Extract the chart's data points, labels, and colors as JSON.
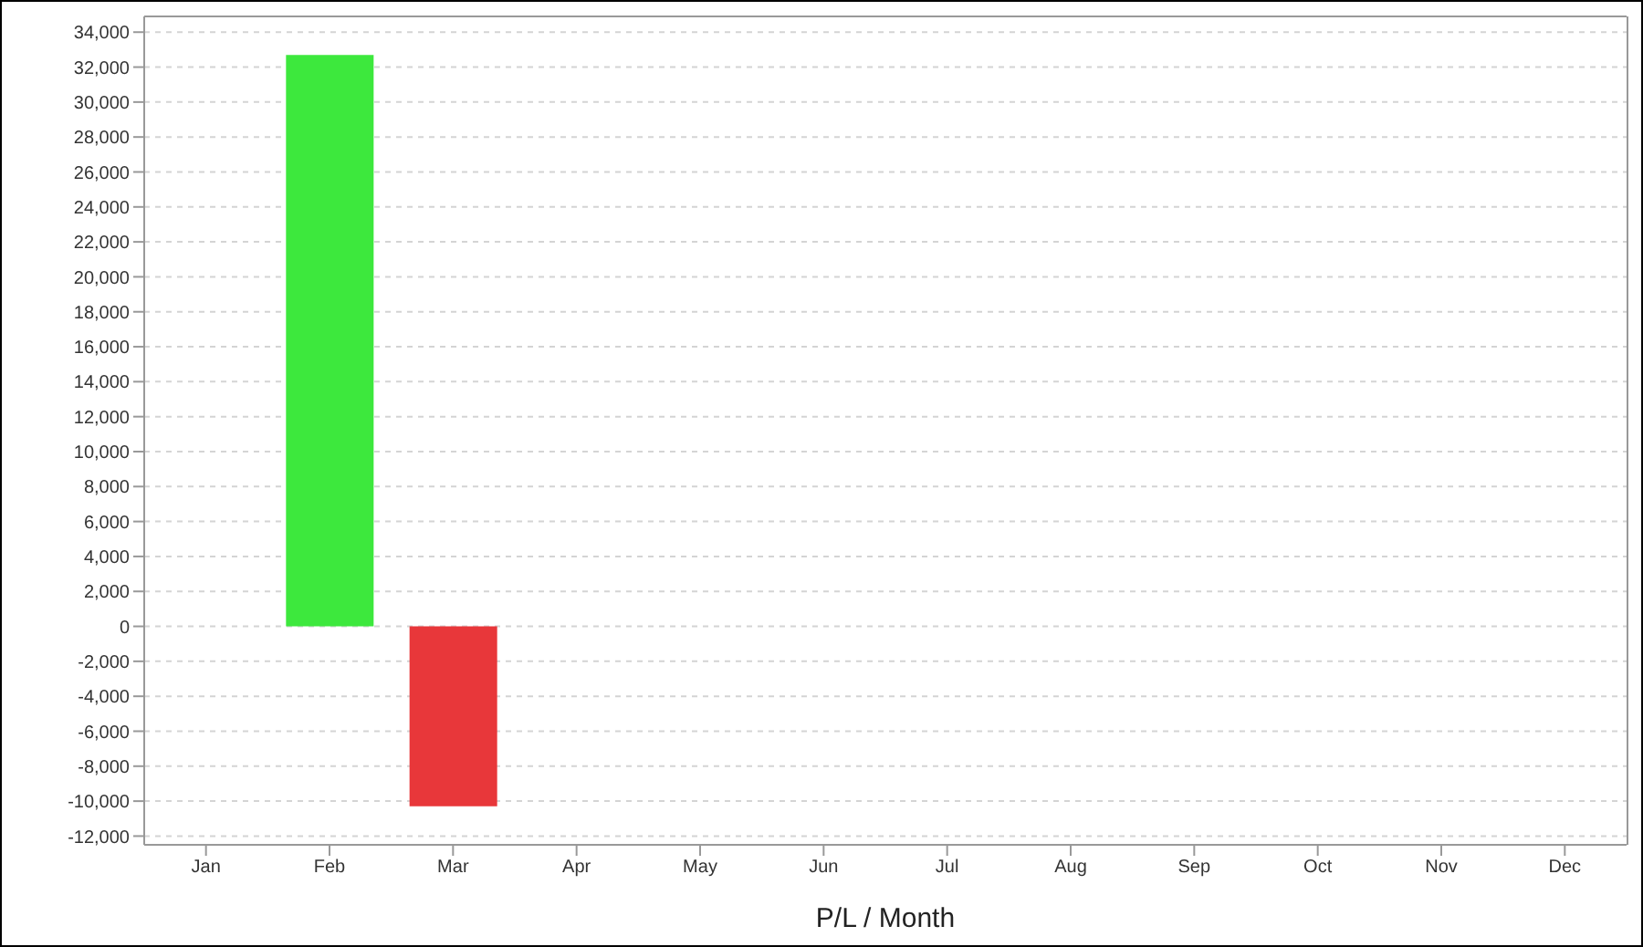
{
  "chart_data": {
    "type": "bar",
    "xlabel": "P/L / Month",
    "categories": [
      "Jan",
      "Feb",
      "Mar",
      "Apr",
      "May",
      "Jun",
      "Jul",
      "Aug",
      "Sep",
      "Oct",
      "Nov",
      "Dec"
    ],
    "values": [
      0,
      32700,
      -10300,
      null,
      null,
      null,
      null,
      null,
      null,
      null,
      null,
      null
    ],
    "colors": [
      "#3de83d",
      "#3de83d",
      "#e8373a",
      "#3de83d",
      "#3de83d",
      "#3de83d",
      "#3de83d",
      "#3de83d",
      "#3de83d",
      "#3de83d",
      "#3de83d",
      "#3de83d"
    ],
    "ylim": [
      -12500,
      34900
    ],
    "yticks": [
      {
        "value": -12000,
        "label": "-12,000"
      },
      {
        "value": -10000,
        "label": "-10,000"
      },
      {
        "value": -8000,
        "label": "-8,000"
      },
      {
        "value": -6000,
        "label": "-6,000"
      },
      {
        "value": -4000,
        "label": "-4,000"
      },
      {
        "value": -2000,
        "label": "-2,000"
      },
      0,
      {
        "value": 2000,
        "label": "2,000"
      },
      {
        "value": 4000,
        "label": "4,000"
      },
      {
        "value": 6000,
        "label": "6,000"
      },
      {
        "value": 8000,
        "label": "8,000"
      },
      {
        "value": 10000,
        "label": "10,000"
      },
      {
        "value": 12000,
        "label": "12,000"
      },
      {
        "value": 14000,
        "label": "14,000"
      },
      {
        "value": 16000,
        "label": "16,000"
      },
      {
        "value": 18000,
        "label": "18,000"
      },
      {
        "value": 20000,
        "label": "20,000"
      },
      {
        "value": 22000,
        "label": "22,000"
      },
      {
        "value": 24000,
        "label": "24,000"
      },
      {
        "value": 26000,
        "label": "26,000"
      },
      {
        "value": 28000,
        "label": "28,000"
      },
      {
        "value": 30000,
        "label": "30,000"
      },
      {
        "value": 32000,
        "label": "32,000"
      },
      {
        "value": 34000,
        "label": "34,000"
      }
    ],
    "grid": "y"
  }
}
